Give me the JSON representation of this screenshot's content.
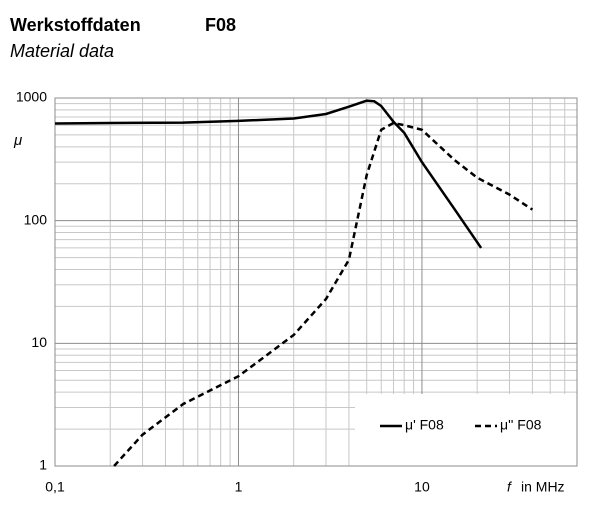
{
  "chart_data": {
    "type": "line",
    "title": "Werkstoffdaten",
    "title_code": "F08",
    "subtitle": "Material data",
    "y_label": "μ",
    "x_label_var": "f",
    "x_label": "in MHz",
    "xscale": "log",
    "yscale": "log",
    "grid": true,
    "legend": "lower right",
    "xlim": [
      0.1,
      70
    ],
    "ylim": [
      1,
      1000
    ],
    "xticks": [
      {
        "value": 0.1,
        "label": "0,1"
      },
      1,
      10
    ],
    "yticks": [
      1,
      10,
      100,
      1000
    ],
    "minor_xticks": [
      0.2,
      0.3,
      0.4,
      0.5,
      0.6,
      0.7,
      0.8,
      0.9,
      2,
      3,
      4,
      5,
      6,
      7,
      8,
      9,
      20,
      30,
      40,
      50,
      60
    ],
    "minor_yticks": [
      2,
      3,
      4,
      5,
      6,
      7,
      8,
      9,
      20,
      30,
      40,
      50,
      60,
      70,
      80,
      90,
      200,
      300,
      400,
      500,
      600,
      700,
      800,
      900
    ],
    "series": [
      {
        "name": "μ' F08",
        "color": "#000000",
        "linestyle": "solid",
        "x": [
          0.1,
          0.2,
          0.5,
          1,
          2,
          3,
          4,
          5,
          5.5,
          6,
          7,
          8,
          10,
          15,
          21
        ],
        "values": [
          620,
          625,
          630,
          650,
          680,
          740,
          850,
          950,
          940,
          860,
          640,
          520,
          300,
          125,
          60
        ]
      },
      {
        "name": "μ'' F08",
        "color": "#000000",
        "linestyle": "dashed",
        "x": [
          0.21,
          0.3,
          0.5,
          1,
          2,
          3,
          4,
          5,
          6,
          7,
          8,
          10,
          15,
          20,
          30,
          40
        ],
        "values": [
          1,
          1.8,
          3.2,
          5.4,
          11.7,
          23,
          48,
          235,
          550,
          625,
          600,
          550,
          313,
          224,
          163,
          123
        ]
      }
    ]
  }
}
